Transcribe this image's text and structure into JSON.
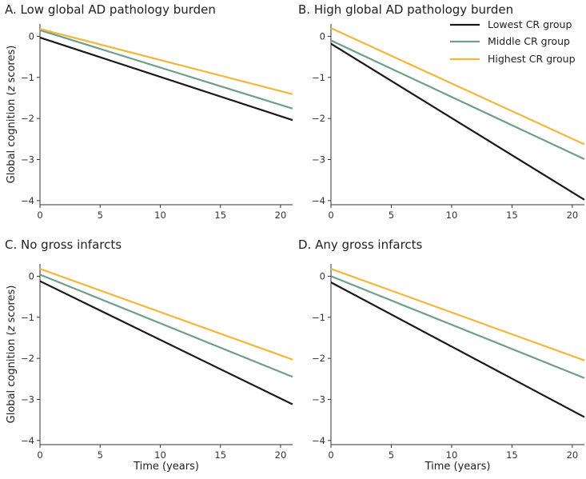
{
  "chart_data": [
    {
      "type": "line",
      "title": "A. Low global AD pathology burden",
      "xlabel": "",
      "ylabel": "Global cognition (z scores)",
      "xlim": [
        0,
        21
      ],
      "ylim": [
        -4.1,
        0.3
      ],
      "xticks": [
        0,
        5,
        10,
        15,
        20
      ],
      "yticks": [
        0,
        -1,
        -2,
        -3,
        -4
      ],
      "series": [
        {
          "name": "Lowest CR group",
          "color": "#1a1a1a",
          "x": [
            0,
            21
          ],
          "y": [
            -0.03,
            -2.04
          ]
        },
        {
          "name": "Middle CR group",
          "color": "#6e9e8a",
          "x": [
            0,
            21
          ],
          "y": [
            0.15,
            -1.76
          ]
        },
        {
          "name": "Highest CR group",
          "color": "#f2b63a",
          "x": [
            0,
            21
          ],
          "y": [
            0.18,
            -1.41
          ]
        }
      ]
    },
    {
      "type": "line",
      "title": "B. High global AD pathology burden",
      "xlabel": "",
      "ylabel": "",
      "xlim": [
        0,
        21
      ],
      "ylim": [
        -4.1,
        0.3
      ],
      "xticks": [
        0,
        5,
        10,
        15,
        20
      ],
      "yticks": [
        0,
        -1,
        -2,
        -3,
        -4
      ],
      "legend": [
        "Lowest CR group",
        "Middle CR group",
        "Highest CR group"
      ],
      "series": [
        {
          "name": "Lowest CR group",
          "color": "#1a1a1a",
          "x": [
            0,
            21
          ],
          "y": [
            -0.18,
            -3.98
          ]
        },
        {
          "name": "Middle CR group",
          "color": "#6e9e8a",
          "x": [
            0,
            21
          ],
          "y": [
            -0.1,
            -2.99
          ]
        },
        {
          "name": "Highest CR group",
          "color": "#f2b63a",
          "x": [
            0,
            21
          ],
          "y": [
            0.2,
            -2.63
          ]
        }
      ]
    },
    {
      "type": "line",
      "title": "C. No gross infarcts",
      "xlabel": "Time (years)",
      "ylabel": "Global cognition (z scores)",
      "xlim": [
        0,
        21
      ],
      "ylim": [
        -4.1,
        0.3
      ],
      "xticks": [
        0,
        5,
        10,
        15,
        20
      ],
      "yticks": [
        0,
        -1,
        -2,
        -3,
        -4
      ],
      "series": [
        {
          "name": "Lowest CR group",
          "color": "#1a1a1a",
          "x": [
            0,
            21
          ],
          "y": [
            -0.12,
            -3.12
          ]
        },
        {
          "name": "Middle CR group",
          "color": "#6e9e8a",
          "x": [
            0,
            21
          ],
          "y": [
            0.04,
            -2.45
          ]
        },
        {
          "name": "Highest CR group",
          "color": "#f2b63a",
          "x": [
            0,
            21
          ],
          "y": [
            0.18,
            -2.03
          ]
        }
      ]
    },
    {
      "type": "line",
      "title": "D. Any gross infarcts",
      "xlabel": "Time (years)",
      "ylabel": "",
      "xlim": [
        0,
        21
      ],
      "ylim": [
        -4.1,
        0.3
      ],
      "xticks": [
        0,
        5,
        10,
        15,
        20
      ],
      "yticks": [
        0,
        -1,
        -2,
        -3,
        -4
      ],
      "series": [
        {
          "name": "Lowest CR group",
          "color": "#1a1a1a",
          "x": [
            0,
            21
          ],
          "y": [
            -0.15,
            -3.43
          ]
        },
        {
          "name": "Middle CR group",
          "color": "#6e9e8a",
          "x": [
            0,
            21
          ],
          "y": [
            0.0,
            -2.48
          ]
        },
        {
          "name": "Highest CR group",
          "color": "#f2b63a",
          "x": [
            0,
            21
          ],
          "y": [
            0.18,
            -2.05
          ]
        }
      ]
    }
  ]
}
